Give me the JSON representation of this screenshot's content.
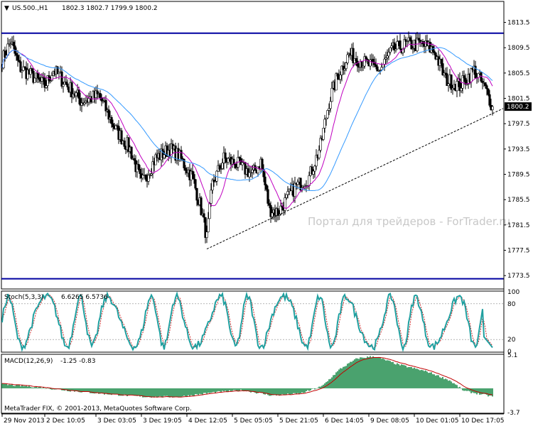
{
  "chart_data": {
    "type": "candlestick",
    "header": {
      "symbol_label": "US.500.,H1",
      "ohlc_text": "1802.3  1802.7  1799.9  1800.2"
    },
    "watermark": "Портал для трейдеров - ForTrader.ru",
    "copyright": "MetaTrader FIX, © 2001-2013, MetaQuotes Software Corp.",
    "colors": {
      "bull": "#ffffff",
      "bear": "#000000",
      "ma_fast": "#c000c0",
      "ma_slow": "#3399ff",
      "level_line": "#0000a0",
      "stoch_main": "#20a0a0",
      "stoch_signal": "#c00000",
      "macd_hist": "#1e8c4a",
      "macd_signal": "#c00000"
    },
    "price_axis": {
      "range": [
        1771.5,
        1816.7
      ],
      "ticks": [
        "1813.5",
        "1809.5",
        "1805.5",
        "1801.5",
        "1797.5",
        "1793.5",
        "1789.5",
        "1785.5",
        "1781.5",
        "1777.5",
        "1773.5"
      ],
      "current_price": "1800.2"
    },
    "levels": [
      1811.8,
      1773.0
    ],
    "trendline": {
      "from": {
        "bar": 144,
        "price": 1777.7
      },
      "to": {
        "bar": 345,
        "price": 1798.6
      }
    },
    "time_labels": [
      {
        "bar": 0,
        "label": "29 Nov 2013"
      },
      {
        "bar": 30,
        "label": "2 Dec 10:05"
      },
      {
        "bar": 66,
        "label": "3 Dec 03:05"
      },
      {
        "bar": 98,
        "label": "3 Dec 19:05"
      },
      {
        "bar": 130,
        "label": "4 Dec 12:05"
      },
      {
        "bar": 162,
        "label": "5 Dec 05:05"
      },
      {
        "bar": 194,
        "label": "5 Dec 21:05"
      },
      {
        "bar": 226,
        "label": "6 Dec 14:05"
      },
      {
        "bar": 258,
        "label": "9 Dec 08:05"
      },
      {
        "bar": 290,
        "label": "10 Dec 01:05"
      },
      {
        "bar": 322,
        "label": "10 Dec 17:05"
      }
    ],
    "price_path": [
      [
        0,
        1807.5
      ],
      [
        6,
        1810.5
      ],
      [
        12,
        1806.5
      ],
      [
        20,
        1805.2
      ],
      [
        30,
        1803.5
      ],
      [
        36,
        1806.0
      ],
      [
        46,
        1803.5
      ],
      [
        56,
        1801.0
      ],
      [
        68,
        1802.0
      ],
      [
        80,
        1796.5
      ],
      [
        90,
        1793.5
      ],
      [
        98,
        1788.0
      ],
      [
        108,
        1792.0
      ],
      [
        118,
        1793.5
      ],
      [
        124,
        1792.5
      ],
      [
        134,
        1789.0
      ],
      [
        140,
        1784.0
      ],
      [
        144,
        1779.5
      ],
      [
        148,
        1788.0
      ],
      [
        156,
        1792.0
      ],
      [
        166,
        1791.0
      ],
      [
        176,
        1789.5
      ],
      [
        182,
        1791.5
      ],
      [
        188,
        1784.0
      ],
      [
        194,
        1783.5
      ],
      [
        206,
        1787.5
      ],
      [
        216,
        1789.0
      ],
      [
        224,
        1794.0
      ],
      [
        230,
        1801.0
      ],
      [
        236,
        1805.0
      ],
      [
        244,
        1808.5
      ],
      [
        256,
        1807.0
      ],
      [
        266,
        1806.0
      ],
      [
        274,
        1809.0
      ],
      [
        284,
        1810.0
      ],
      [
        296,
        1810.0
      ],
      [
        304,
        1809.0
      ],
      [
        312,
        1804.5
      ],
      [
        322,
        1803.5
      ],
      [
        332,
        1806.0
      ],
      [
        340,
        1803.0
      ],
      [
        345,
        1800.2
      ]
    ],
    "stoch": {
      "label": "Stoch(5,3,3)",
      "values_text": "6.6265  6.5736",
      "range": [
        0,
        100
      ],
      "ticks": [
        "100",
        "80",
        "20",
        "0"
      ],
      "levels": [
        80,
        20
      ],
      "period": 24
    },
    "macd": {
      "label": "MACD(12,26,9)",
      "values_text": "-1.25  -0.83",
      "range": [
        -3.7,
        5.1
      ],
      "ticks": [
        "5.1",
        "-3.7"
      ],
      "path": [
        [
          0,
          0.6
        ],
        [
          20,
          0.3
        ],
        [
          45,
          -0.3
        ],
        [
          70,
          -0.8
        ],
        [
          100,
          -1.3
        ],
        [
          125,
          -1.3
        ],
        [
          150,
          -0.6
        ],
        [
          170,
          -0.3
        ],
        [
          190,
          -1.1
        ],
        [
          210,
          -0.8
        ],
        [
          225,
          0.3
        ],
        [
          238,
          3.0
        ],
        [
          250,
          4.6
        ],
        [
          262,
          4.9
        ],
        [
          278,
          3.7
        ],
        [
          300,
          2.5
        ],
        [
          315,
          1.2
        ],
        [
          325,
          -0.4
        ],
        [
          345,
          -1.25
        ]
      ]
    }
  }
}
